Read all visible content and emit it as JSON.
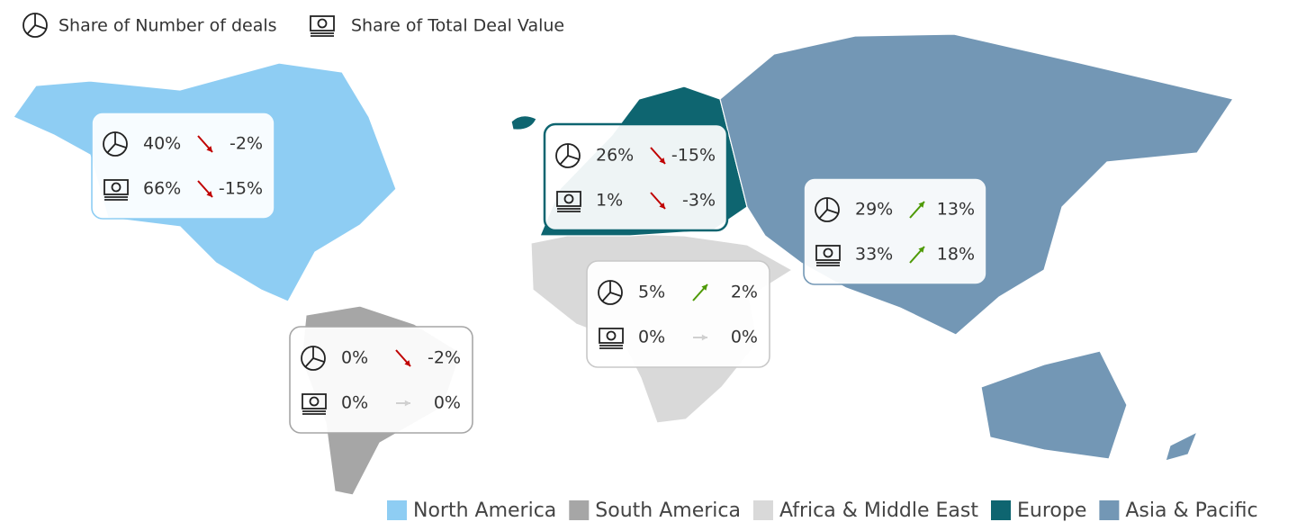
{
  "legend_top": [
    {
      "icon": "pie",
      "label": "Share of Number of deals"
    },
    {
      "icon": "money",
      "label": "Share of Total Deal Value"
    }
  ],
  "regions": [
    {
      "name": "North America",
      "color": "#8ecdf3",
      "deals": {
        "share": "40%",
        "trend": "down",
        "change": "-2%"
      },
      "value": {
        "share": "66%",
        "trend": "down",
        "change": "-15%"
      }
    },
    {
      "name": "South America",
      "color": "#a6a6a6",
      "deals": {
        "share": "0%",
        "trend": "down",
        "change": "-2%"
      },
      "value": {
        "share": "0%",
        "trend": "flat",
        "change": "0%"
      }
    },
    {
      "name": "Africa & Middle East",
      "color": "#d9d9d9",
      "deals": {
        "share": "5%",
        "trend": "up",
        "change": "2%"
      },
      "value": {
        "share": "0%",
        "trend": "flat",
        "change": "0%"
      }
    },
    {
      "name": "Europe",
      "color": "#0e6570",
      "deals": {
        "share": "26%",
        "trend": "down",
        "change": "-15%"
      },
      "value": {
        "share": "1%",
        "trend": "down",
        "change": "-3%"
      }
    },
    {
      "name": "Asia & Pacific",
      "color": "#7397b5",
      "deals": {
        "share": "29%",
        "trend": "up",
        "change": "13%"
      },
      "value": {
        "share": "33%",
        "trend": "up",
        "change": "18%"
      }
    }
  ]
}
